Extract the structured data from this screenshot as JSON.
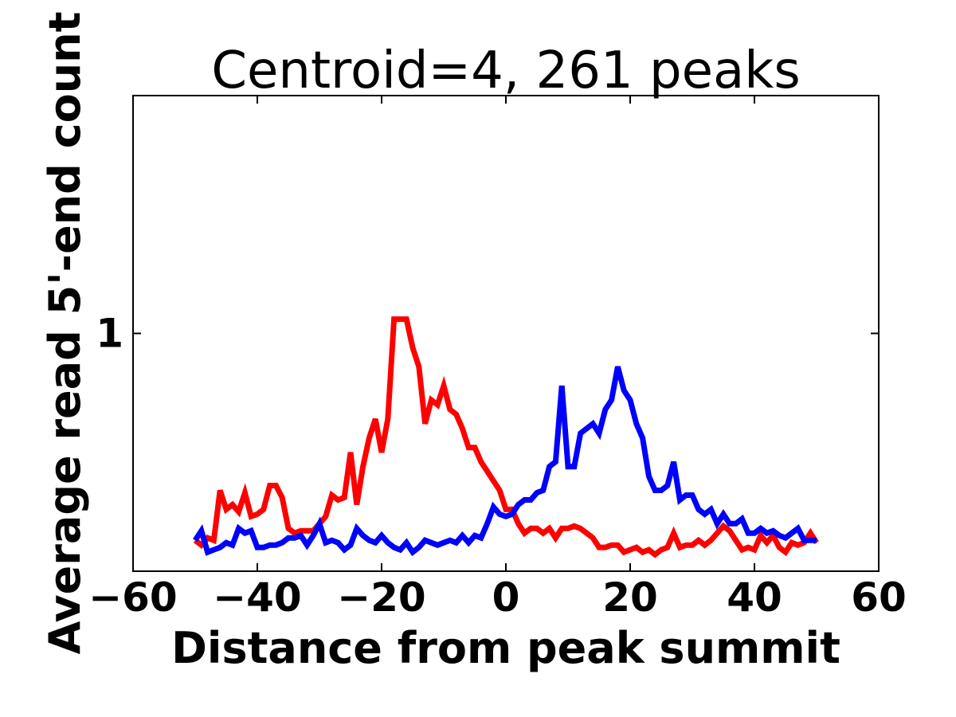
{
  "chart_data": {
    "type": "line",
    "title": "Centroid=4, 261 peaks",
    "xlabel": "Distance from peak summit",
    "ylabel": "Average read 5'-end count",
    "xlim": [
      -60,
      60
    ],
    "ylim": [
      0.5,
      1.5
    ],
    "xticks": [
      -60,
      -40,
      -20,
      0,
      20,
      40,
      60
    ],
    "xtick_labels": [
      "−60",
      "−40",
      "−20",
      "0",
      "20",
      "40",
      "60"
    ],
    "yticks": [
      1
    ],
    "ytick_labels": [
      "1"
    ],
    "grid": false,
    "legend": "none",
    "x": [
      -50,
      -49,
      -48,
      -47,
      -46,
      -45,
      -44,
      -43,
      -42,
      -41,
      -40,
      -39,
      -38,
      -37,
      -36,
      -35,
      -34,
      -33,
      -32,
      -31,
      -30,
      -29,
      -28,
      -27,
      -26,
      -25,
      -24,
      -23,
      -22,
      -21,
      -20,
      -19,
      -18,
      -17,
      -16,
      -15,
      -14,
      -13,
      -12,
      -11,
      -10,
      -9,
      -8,
      -7,
      -6,
      -5,
      -4,
      -3,
      -2,
      -1,
      0,
      1,
      2,
      3,
      4,
      5,
      6,
      7,
      8,
      9,
      10,
      11,
      12,
      13,
      14,
      15,
      16,
      17,
      18,
      19,
      20,
      21,
      22,
      23,
      24,
      25,
      26,
      27,
      28,
      29,
      30,
      31,
      32,
      33,
      34,
      35,
      36,
      37,
      38,
      39,
      40,
      41,
      42,
      43,
      44,
      45,
      46,
      47,
      48,
      49,
      50
    ],
    "series": [
      {
        "color": "#ff0000",
        "values": [
          0.565,
          0.555,
          0.57,
          0.565,
          0.67,
          0.63,
          0.64,
          0.625,
          0.665,
          0.615,
          0.62,
          0.63,
          0.68,
          0.68,
          0.655,
          0.59,
          0.58,
          0.585,
          0.585,
          0.585,
          0.6,
          0.615,
          0.66,
          0.65,
          0.655,
          0.75,
          0.64,
          0.72,
          0.78,
          0.82,
          0.75,
          0.82,
          1.03,
          1.03,
          1.03,
          0.97,
          0.93,
          0.81,
          0.86,
          0.85,
          0.89,
          0.84,
          0.83,
          0.8,
          0.76,
          0.76,
          0.73,
          0.71,
          0.69,
          0.67,
          0.63,
          0.63,
          0.6,
          0.58,
          0.59,
          0.59,
          0.58,
          0.59,
          0.57,
          0.59,
          0.59,
          0.595,
          0.59,
          0.58,
          0.57,
          0.55,
          0.55,
          0.555,
          0.555,
          0.54,
          0.545,
          0.55,
          0.54,
          0.545,
          0.535,
          0.545,
          0.55,
          0.58,
          0.55,
          0.555,
          0.555,
          0.565,
          0.555,
          0.565,
          0.58,
          0.595,
          0.585,
          0.565,
          0.545,
          0.55,
          0.545,
          0.575,
          0.56,
          0.575,
          0.55,
          0.54,
          0.56,
          0.555,
          0.56,
          0.58,
          0.56
        ]
      },
      {
        "color": "#0000ff",
        "values": [
          0.565,
          0.585,
          0.54,
          0.545,
          0.55,
          0.56,
          0.555,
          0.59,
          0.58,
          0.585,
          0.55,
          0.55,
          0.555,
          0.555,
          0.56,
          0.57,
          0.57,
          0.575,
          0.555,
          0.575,
          0.6,
          0.56,
          0.565,
          0.56,
          0.545,
          0.555,
          0.59,
          0.575,
          0.565,
          0.56,
          0.575,
          0.56,
          0.55,
          0.545,
          0.56,
          0.54,
          0.55,
          0.565,
          0.56,
          0.555,
          0.56,
          0.565,
          0.56,
          0.575,
          0.56,
          0.575,
          0.57,
          0.6,
          0.635,
          0.62,
          0.615,
          0.62,
          0.64,
          0.65,
          0.65,
          0.665,
          0.67,
          0.72,
          0.73,
          0.89,
          0.72,
          0.72,
          0.79,
          0.8,
          0.81,
          0.79,
          0.84,
          0.86,
          0.93,
          0.88,
          0.86,
          0.81,
          0.78,
          0.7,
          0.67,
          0.67,
          0.68,
          0.73,
          0.65,
          0.66,
          0.66,
          0.63,
          0.62,
          0.63,
          0.6,
          0.62,
          0.6,
          0.6,
          0.61,
          0.58,
          0.58,
          0.59,
          0.58,
          0.585,
          0.575,
          0.57,
          0.58,
          0.59,
          0.565,
          0.565,
          0.565
        ]
      }
    ]
  }
}
